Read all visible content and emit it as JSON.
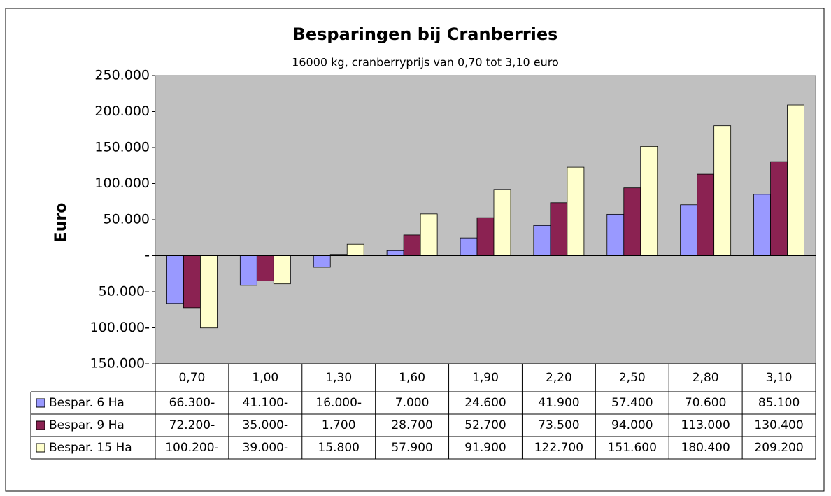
{
  "chart_data": {
    "type": "bar",
    "title": "Besparingen bij Cranberries",
    "subtitle": "16000 kg, cranberryprijs van 0,70 tot  3,10 euro",
    "y_label": "Euro",
    "categories": [
      "0,70",
      "1,00",
      "1,30",
      "1,60",
      "1,90",
      "2,20",
      "2,50",
      "2,80",
      "3,10"
    ],
    "series": [
      {
        "name": "Bespar. 6 Ha",
        "color": "#9999ff",
        "values": [
          -66300,
          -41100,
          -16000,
          7000,
          24600,
          41900,
          57400,
          70600,
          85100
        ],
        "value_labels": [
          "66.300-",
          "41.100-",
          "16.000-",
          "7.000",
          "24.600",
          "41.900",
          "57.400",
          "70.600",
          "85.100"
        ]
      },
      {
        "name": "Bespar. 9 Ha",
        "color": "#8b2252",
        "values": [
          -72200,
          -35000,
          1700,
          28700,
          52700,
          73500,
          94000,
          113000,
          130400
        ],
        "value_labels": [
          "72.200-",
          "35.000-",
          "1.700",
          "28.700",
          "52.700",
          "73.500",
          "94.000",
          "113.000",
          "130.400"
        ]
      },
      {
        "name": "Bespar. 15 Ha",
        "color": "#ffffcc",
        "values": [
          -100200,
          -39000,
          15800,
          57900,
          91900,
          122700,
          151600,
          180400,
          209200
        ],
        "value_labels": [
          "100.200-",
          "39.000-",
          "15.800",
          "57.900",
          "91.900",
          "122.700",
          "151.600",
          "180.400",
          "209.200"
        ]
      }
    ],
    "ylim": [
      -150000,
      250000
    ],
    "yticks": [
      {
        "value": -150000,
        "label": "150.000-"
      },
      {
        "value": -100000,
        "label": "100.000-"
      },
      {
        "value": -50000,
        "label": "50.000-"
      },
      {
        "value": 0,
        "label": "-"
      },
      {
        "value": 50000,
        "label": "50.000"
      },
      {
        "value": 100000,
        "label": "100.000"
      },
      {
        "value": 150000,
        "label": "150.000"
      },
      {
        "value": 200000,
        "label": "200.000"
      },
      {
        "value": 250000,
        "label": "250.000"
      }
    ],
    "plot_background": "#c0c0c0"
  }
}
